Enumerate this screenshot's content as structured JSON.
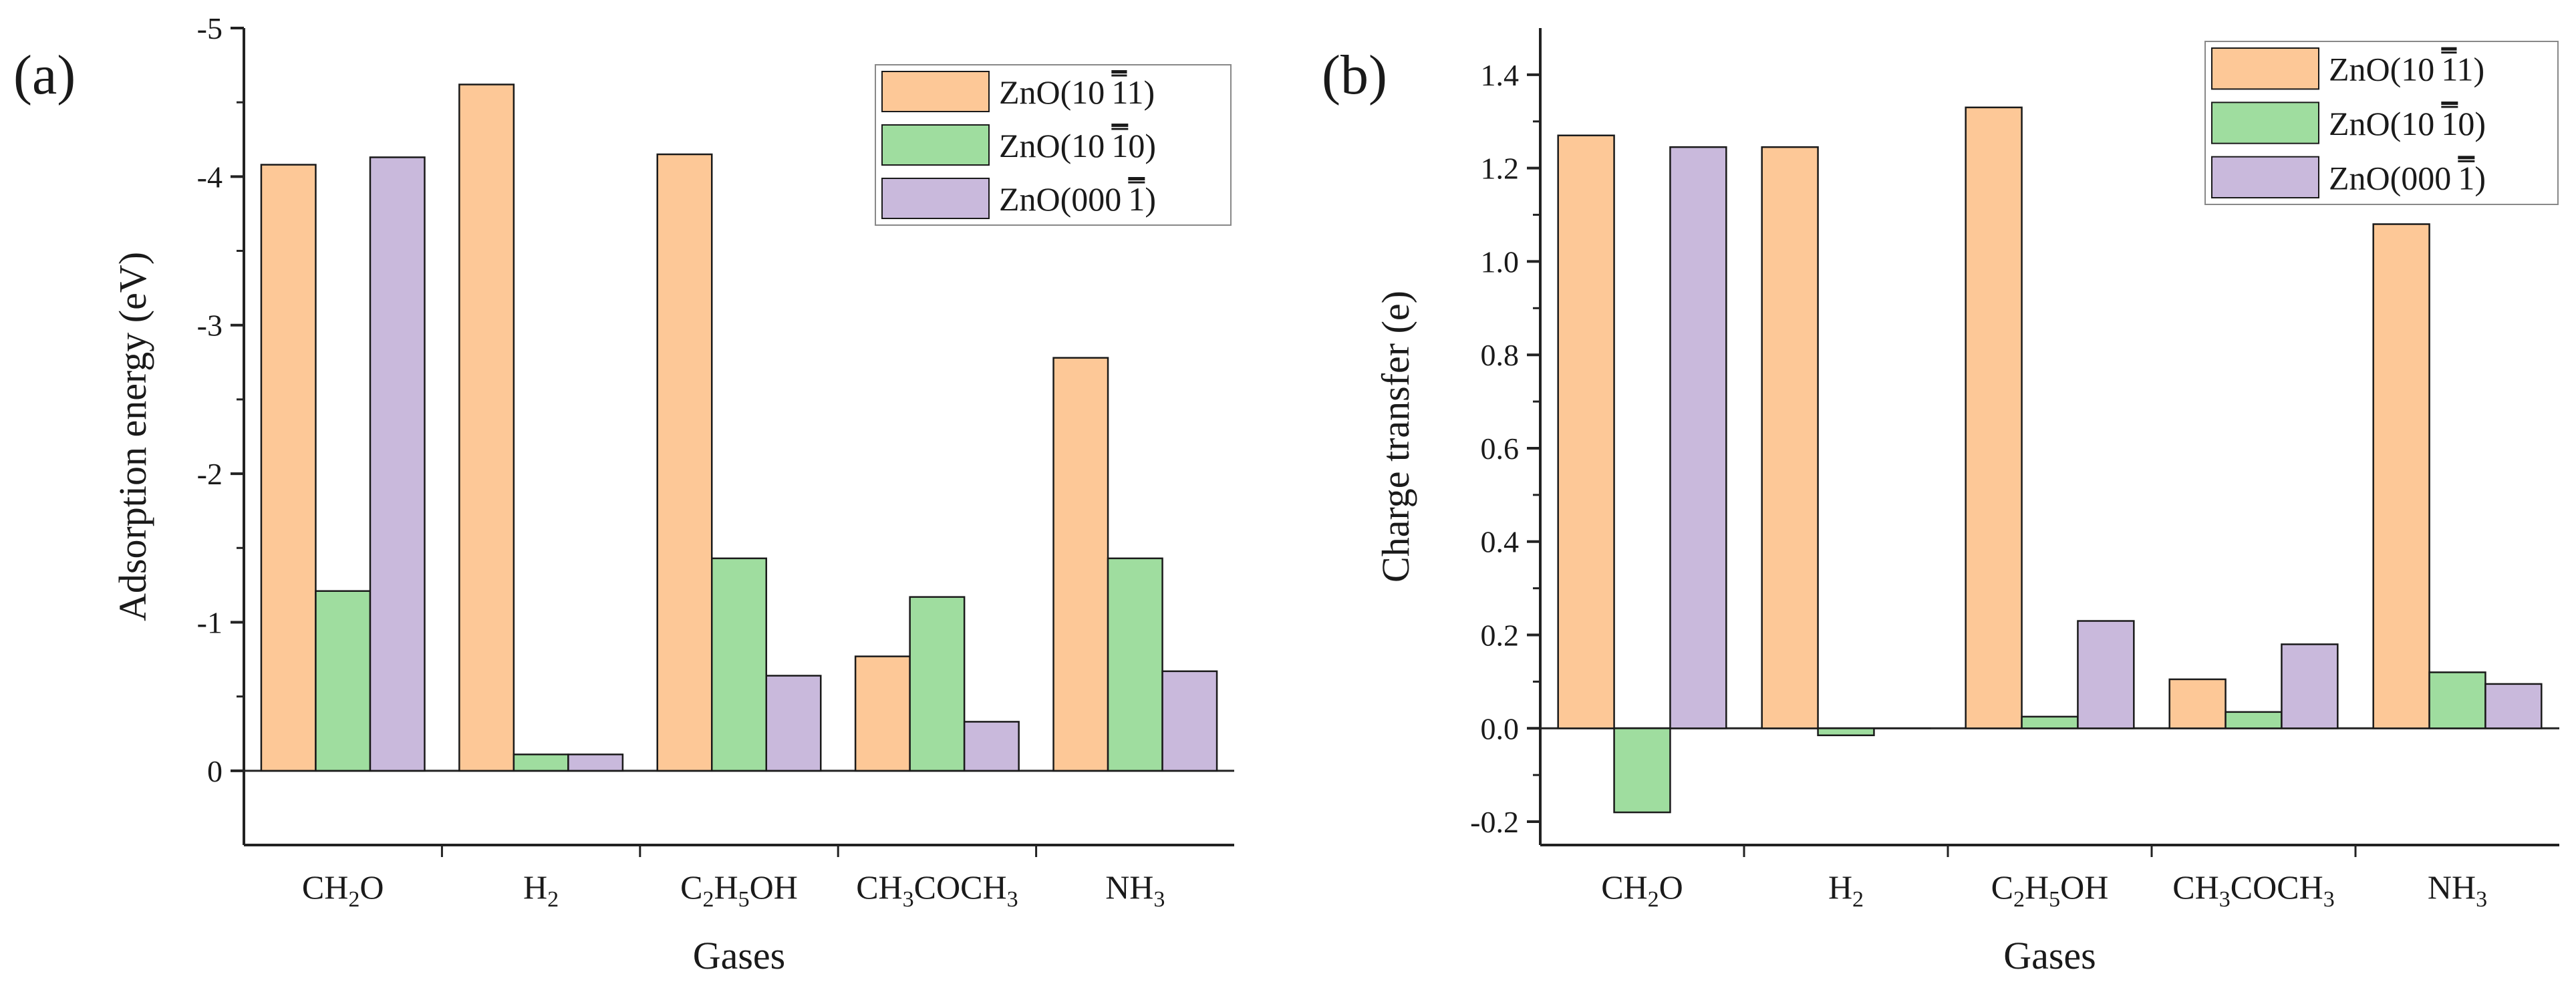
{
  "colors": {
    "series": [
      "#fdc897",
      "#9fdd9f",
      "#c9b9dc"
    ],
    "bar_stroke": "#1a1a1a",
    "axis": "#222222"
  },
  "chart_data": [
    {
      "panel_label": "(a)",
      "type": "bar",
      "title": "",
      "xlabel": "Gases",
      "ylabel": "Adsorption energy (eV)",
      "ylim": [
        0.5,
        -5
      ],
      "yticks": [
        0,
        -1,
        -2,
        -3,
        -4,
        -5
      ],
      "ytick_labels": [
        "0",
        "-1",
        "-2",
        "-3",
        "-4",
        "-5"
      ],
      "legend_position": "top-right",
      "categories": [
        {
          "base": "CH",
          "sub1": "2",
          "mid": "O",
          "sub2": "",
          "tail": ""
        },
        {
          "base": "H",
          "sub1": "2",
          "mid": "",
          "sub2": "",
          "tail": ""
        },
        {
          "base": "C",
          "sub1": "2",
          "mid": "H",
          "sub2": "5",
          "tail": "OH"
        },
        {
          "base": "CH",
          "sub1": "3",
          "mid": "COCH",
          "sub2": "3",
          "tail": ""
        },
        {
          "base": "NH",
          "sub1": "3",
          "mid": "",
          "sub2": "",
          "tail": ""
        }
      ],
      "series": [
        {
          "name_prefix": "ZnO(10",
          "name_bar": "1",
          "name_plain": "1",
          "name_suffix": ")",
          "legend_text": "ZnO(10 1 1)",
          "values": [
            -4.08,
            -4.62,
            -4.15,
            -0.77,
            -2.78
          ]
        },
        {
          "name_prefix": "ZnO(10",
          "name_bar": "1",
          "name_plain": "0",
          "name_suffix": ")",
          "legend_text": "ZnO(10 1 0)",
          "values": [
            -1.21,
            -0.11,
            -1.43,
            -1.17,
            -1.43
          ]
        },
        {
          "name_prefix": "ZnO(000",
          "name_bar": "",
          "name_plain": "",
          "name_suffix": "",
          "legend_text": "ZnO(000 1)",
          "bar_after": "1",
          "values": [
            -4.13,
            -0.11,
            -0.64,
            -0.33,
            -0.67
          ]
        }
      ]
    },
    {
      "panel_label": "(b)",
      "type": "bar",
      "title": "",
      "xlabel": "Gases",
      "ylabel": "Charge transfer (e)",
      "ylim": [
        -0.25,
        1.5
      ],
      "yticks": [
        -0.2,
        0.0,
        0.2,
        0.4,
        0.6,
        0.8,
        1.0,
        1.2,
        1.4
      ],
      "ytick_labels": [
        "-0.2",
        "0.0",
        "0.2",
        "0.4",
        "0.6",
        "0.8",
        "1.0",
        "1.2",
        "1.4"
      ],
      "legend_position": "top-right",
      "categories": [
        {
          "base": "CH",
          "sub1": "2",
          "mid": "O",
          "sub2": "",
          "tail": ""
        },
        {
          "base": "H",
          "sub1": "2",
          "mid": "",
          "sub2": "",
          "tail": ""
        },
        {
          "base": "C",
          "sub1": "2",
          "mid": "H",
          "sub2": "5",
          "tail": "OH"
        },
        {
          "base": "CH",
          "sub1": "3",
          "mid": "COCH",
          "sub2": "3",
          "tail": ""
        },
        {
          "base": "NH",
          "sub1": "3",
          "mid": "",
          "sub2": "",
          "tail": ""
        }
      ],
      "series": [
        {
          "name_prefix": "ZnO(10",
          "name_bar": "1",
          "name_plain": "1",
          "name_suffix": ")",
          "legend_text": "ZnO(10 1 1)",
          "values": [
            1.27,
            1.245,
            1.33,
            0.105,
            1.08
          ]
        },
        {
          "name_prefix": "ZnO(10",
          "name_bar": "1",
          "name_plain": "0",
          "name_suffix": ")",
          "legend_text": "ZnO(10 1 0)",
          "values": [
            -0.18,
            -0.015,
            0.025,
            0.035,
            0.12
          ]
        },
        {
          "name_prefix": "ZnO(000",
          "name_bar": "",
          "name_plain": "",
          "name_suffix": "",
          "legend_text": "ZnO(000 1)",
          "bar_after": "1",
          "values": [
            1.245,
            0.0,
            0.23,
            0.18,
            0.095
          ]
        }
      ]
    }
  ]
}
